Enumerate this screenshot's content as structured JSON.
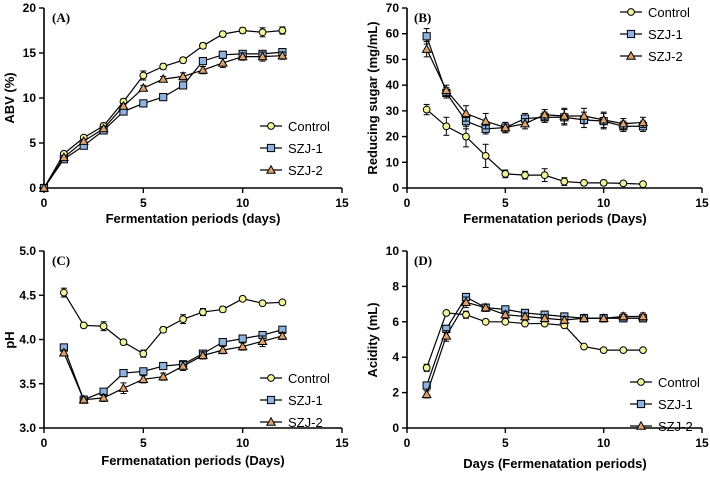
{
  "colors": {
    "control": "#f3f39a",
    "szj1": "#8fb3e0",
    "szj2": "#e0a26b",
    "axis": "#000000"
  },
  "chart_data": [
    {
      "type": "line",
      "panel_label": "(A)",
      "xlabel": "Fermentation periods (days)",
      "ylabel": "ABV (%)",
      "xlim": [
        0,
        15
      ],
      "ylim": [
        0,
        20
      ],
      "xticks": [
        0,
        5,
        10,
        15
      ],
      "yticks": [
        0,
        5,
        10,
        15,
        20
      ],
      "legend_position": "lower-right",
      "series": [
        {
          "name": "Control",
          "marker": "circle",
          "x": [
            0,
            1,
            2,
            3,
            4,
            5,
            6,
            7,
            8,
            9,
            10,
            11,
            12
          ],
          "y": [
            0,
            3.8,
            5.6,
            6.9,
            9.6,
            12.5,
            13.5,
            14.2,
            15.8,
            17.1,
            17.5,
            17.3,
            17.5
          ],
          "err": [
            0,
            0.2,
            0.2,
            0.3,
            0.3,
            0.5,
            0.3,
            0.3,
            0.3,
            0.3,
            0.3,
            0.5,
            0.4
          ]
        },
        {
          "name": "SZJ-1",
          "marker": "square",
          "x": [
            0,
            1,
            2,
            3,
            4,
            5,
            6,
            7,
            8,
            9,
            10,
            11,
            12
          ],
          "y": [
            0,
            3.2,
            4.7,
            6.4,
            8.5,
            9.4,
            10.1,
            11.4,
            14.1,
            14.8,
            14.9,
            14.9,
            15.1
          ],
          "err": [
            0,
            0.2,
            0.2,
            0.2,
            0.2,
            0.3,
            0.2,
            0.3,
            0.3,
            0.3,
            0.2,
            0.3,
            0.3
          ]
        },
        {
          "name": "SZJ-2",
          "marker": "triangle",
          "x": [
            0,
            1,
            2,
            3,
            4,
            5,
            6,
            7,
            8,
            9,
            10,
            11,
            12
          ],
          "y": [
            0,
            3.4,
            5.2,
            6.6,
            9.1,
            11.1,
            12.1,
            12.4,
            13.1,
            13.9,
            14.6,
            14.6,
            14.7
          ],
          "err": [
            0,
            0.2,
            0.2,
            0.2,
            0.3,
            0.3,
            0.3,
            0.4,
            0.4,
            0.5,
            0.4,
            0.5,
            0.4
          ]
        }
      ]
    },
    {
      "type": "line",
      "panel_label": "(B)",
      "xlabel": "Fermenatation periods (Days)",
      "ylabel": "Reducing sugar (mg/mL)",
      "xlim": [
        0,
        15
      ],
      "ylim": [
        0,
        70
      ],
      "xticks": [
        0,
        5,
        10,
        15
      ],
      "yticks": [
        0,
        10,
        20,
        30,
        40,
        50,
        60,
        70
      ],
      "legend_position": "top-right",
      "series": [
        {
          "name": "Control",
          "marker": "circle",
          "x": [
            1,
            2,
            3,
            4,
            5,
            6,
            7,
            8,
            9,
            10,
            11,
            12
          ],
          "y": [
            30.5,
            24,
            20,
            12.5,
            5.5,
            5,
            5,
            2.5,
            2,
            2,
            1.8,
            1.5
          ],
          "err": [
            2,
            3.5,
            4,
            4.5,
            1.5,
            1.5,
            2.5,
            1.5,
            1,
            1,
            0.5,
            0.5
          ]
        },
        {
          "name": "SZJ-1",
          "marker": "square",
          "x": [
            1,
            2,
            3,
            4,
            5,
            6,
            7,
            8,
            9,
            10,
            11,
            12
          ],
          "y": [
            59,
            37,
            26,
            23,
            23.5,
            27,
            27.5,
            27.5,
            26.5,
            26,
            24,
            24
          ],
          "err": [
            3,
            2,
            3,
            2,
            2,
            2,
            2,
            3,
            3,
            3,
            2,
            2
          ]
        },
        {
          "name": "SZJ-2",
          "marker": "triangle",
          "x": [
            1,
            2,
            3,
            4,
            5,
            6,
            7,
            8,
            9,
            10,
            11,
            12
          ],
          "y": [
            54,
            38,
            29,
            26,
            23.5,
            25,
            28.5,
            28,
            28,
            26.5,
            25,
            25.5
          ],
          "err": [
            3,
            2,
            3,
            3,
            2,
            2,
            2,
            3,
            3,
            3,
            2,
            2
          ]
        }
      ]
    },
    {
      "type": "line",
      "panel_label": "(C)",
      "xlabel": "Fermenatation periods (Days)",
      "ylabel": "pH",
      "xlim": [
        0,
        15
      ],
      "ylim": [
        3.0,
        5.0
      ],
      "xticks": [
        0,
        5,
        10,
        15
      ],
      "yticks": [
        3.0,
        3.5,
        4.0,
        4.5,
        5.0
      ],
      "ytick_labels": [
        "3.0",
        "3.5",
        "4.0",
        "4.5",
        "5.0"
      ],
      "legend_position": "lower-right",
      "series": [
        {
          "name": "Control",
          "marker": "circle",
          "x": [
            1,
            2,
            3,
            4,
            5,
            6,
            7,
            8,
            9,
            10,
            11,
            12
          ],
          "y": [
            4.53,
            4.16,
            4.15,
            3.97,
            3.84,
            4.11,
            4.23,
            4.31,
            4.34,
            4.46,
            4.41,
            4.42
          ],
          "err": [
            0.05,
            0.02,
            0.05,
            0.03,
            0.04,
            0.03,
            0.05,
            0.04,
            0.03,
            0.02,
            0.02,
            0.02
          ]
        },
        {
          "name": "SZJ-1",
          "marker": "square",
          "x": [
            1,
            2,
            3,
            4,
            5,
            6,
            7,
            8,
            9,
            10,
            11,
            12
          ],
          "y": [
            3.91,
            3.32,
            3.41,
            3.62,
            3.64,
            3.7,
            3.72,
            3.84,
            3.97,
            4.01,
            4.05,
            4.11
          ],
          "err": [
            0.03,
            0.02,
            0.03,
            0.03,
            0.03,
            0.03,
            0.03,
            0.03,
            0.03,
            0.03,
            0.03,
            0.03
          ]
        },
        {
          "name": "SZJ-2",
          "marker": "triangle",
          "x": [
            1,
            2,
            3,
            4,
            5,
            6,
            7,
            8,
            9,
            10,
            11,
            12
          ],
          "y": [
            3.85,
            3.32,
            3.34,
            3.45,
            3.55,
            3.58,
            3.7,
            3.82,
            3.88,
            3.92,
            3.98,
            4.04
          ],
          "err": [
            0.03,
            0.02,
            0.04,
            0.06,
            0.04,
            0.04,
            0.05,
            0.04,
            0.04,
            0.04,
            0.06,
            0.04
          ]
        }
      ]
    },
    {
      "type": "line",
      "panel_label": "(D)",
      "xlabel": "Days (Fermenatation periods)",
      "ylabel": "Acidity (mL)",
      "xlim": [
        0,
        15
      ],
      "ylim": [
        0,
        10
      ],
      "xticks": [
        0,
        5,
        10,
        15
      ],
      "yticks": [
        0,
        2,
        4,
        6,
        8,
        10
      ],
      "legend_position": "lower-right",
      "series": [
        {
          "name": "Control",
          "marker": "circle",
          "x": [
            1,
            2,
            3,
            4,
            5,
            6,
            7,
            8,
            9,
            10,
            11,
            12
          ],
          "y": [
            3.4,
            6.5,
            6.4,
            6.0,
            6.0,
            5.9,
            5.9,
            5.8,
            4.6,
            4.4,
            4.4,
            4.4
          ],
          "err": [
            0.2,
            0.1,
            0.2,
            0.1,
            0.1,
            0.1,
            0.1,
            0.1,
            0.1,
            0.1,
            0.1,
            0.1
          ]
        },
        {
          "name": "SZJ-1",
          "marker": "square",
          "x": [
            1,
            2,
            3,
            4,
            5,
            6,
            7,
            8,
            9,
            10,
            11,
            12
          ],
          "y": [
            2.4,
            5.6,
            7.4,
            6.8,
            6.7,
            6.5,
            6.4,
            6.3,
            6.2,
            6.2,
            6.2,
            6.2
          ],
          "err": [
            0.2,
            0.2,
            0.2,
            0.2,
            0.2,
            0.2,
            0.2,
            0.2,
            0.2,
            0.2,
            0.2,
            0.2
          ]
        },
        {
          "name": "SZJ-2",
          "marker": "triangle",
          "x": [
            1,
            2,
            3,
            4,
            5,
            6,
            7,
            8,
            9,
            10,
            11,
            12
          ],
          "y": [
            1.9,
            5.2,
            7.1,
            6.8,
            6.4,
            6.3,
            6.2,
            6.1,
            6.2,
            6.2,
            6.3,
            6.3
          ],
          "err": [
            0.2,
            0.3,
            0.3,
            0.2,
            0.2,
            0.2,
            0.2,
            0.2,
            0.2,
            0.2,
            0.2,
            0.2
          ]
        }
      ]
    }
  ]
}
